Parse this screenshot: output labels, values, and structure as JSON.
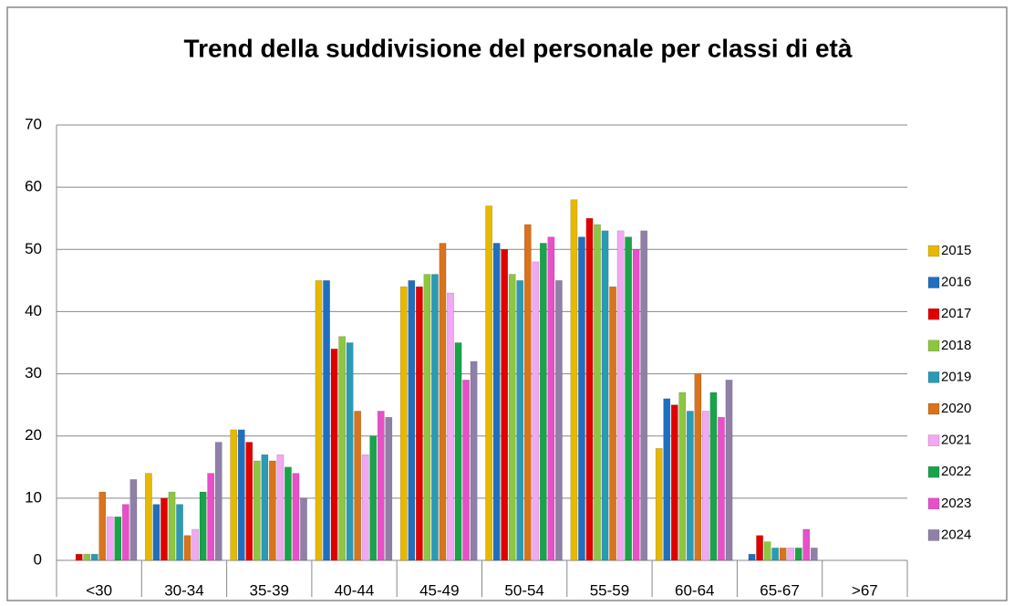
{
  "chart_data": {
    "type": "bar",
    "title": "Trend della suddivisione del personale per classi di età",
    "categories": [
      "<30",
      "30-34",
      "35-39",
      "40-44",
      "45-49",
      "50-54",
      "55-59",
      "60-64",
      "65-67",
      ">67"
    ],
    "series": [
      {
        "name": "2015",
        "color": "#e6b800",
        "values": [
          0,
          14,
          21,
          45,
          44,
          57,
          58,
          18,
          0,
          0
        ]
      },
      {
        "name": "2016",
        "color": "#1f6fbf",
        "values": [
          0,
          9,
          21,
          45,
          45,
          51,
          52,
          26,
          1,
          0
        ]
      },
      {
        "name": "2017",
        "color": "#e00000",
        "values": [
          1,
          10,
          19,
          34,
          44,
          50,
          55,
          25,
          4,
          0
        ]
      },
      {
        "name": "2018",
        "color": "#8dc63f",
        "values": [
          1,
          11,
          16,
          36,
          46,
          46,
          54,
          27,
          3,
          0
        ]
      },
      {
        "name": "2019",
        "color": "#2a9ab5",
        "values": [
          1,
          9,
          17,
          35,
          46,
          45,
          53,
          24,
          2,
          0
        ]
      },
      {
        "name": "2020",
        "color": "#d9731c",
        "values": [
          11,
          4,
          16,
          24,
          51,
          54,
          44,
          30,
          2,
          0
        ]
      },
      {
        "name": "2021",
        "color": "#f2a8f2",
        "values": [
          7,
          5,
          17,
          17,
          43,
          48,
          53,
          24,
          2,
          0
        ]
      },
      {
        "name": "2022",
        "color": "#19a34a",
        "values": [
          7,
          11,
          15,
          20,
          35,
          51,
          52,
          27,
          2,
          0
        ]
      },
      {
        "name": "2023",
        "color": "#e84fc8",
        "values": [
          9,
          14,
          14,
          24,
          29,
          52,
          50,
          23,
          5,
          0
        ]
      },
      {
        "name": "2024",
        "color": "#9080a8",
        "values": [
          13,
          19,
          10,
          23,
          32,
          45,
          53,
          29,
          2,
          0
        ]
      }
    ],
    "ylim": [
      0,
      70
    ],
    "yticks": [
      0,
      10,
      20,
      30,
      40,
      50,
      60,
      70
    ],
    "grid": true,
    "legend": "right"
  }
}
